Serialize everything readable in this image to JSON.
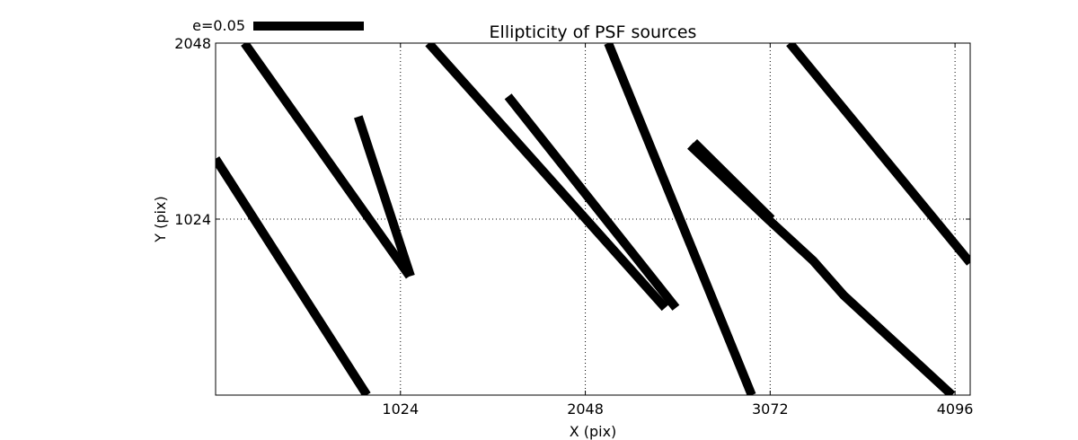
{
  "chart_data": {
    "type": "line",
    "title": "Ellipticity of PSF sources",
    "xlabel": "X (pix)",
    "ylabel": "Y (pix)",
    "xlim": [
      0,
      4180
    ],
    "ylim": [
      0,
      2048
    ],
    "xticks": [
      1024,
      2048,
      3072,
      4096
    ],
    "yticks": [
      1024,
      2048
    ],
    "xtick_labels": [
      "1024",
      "2048",
      "3072",
      "4096"
    ],
    "ytick_labels": [
      "1024",
      "2048"
    ],
    "grid": true,
    "grid_style": "dotted",
    "scale_bar": {
      "label": "e=0.05",
      "length_x": 610
    },
    "series": [
      {
        "x": [
          0,
          838
        ],
        "y": [
          1375,
          0
        ]
      },
      {
        "x": [
          160,
          1075
        ],
        "y": [
          2048,
          692
        ]
      },
      {
        "x": [
          790,
          1080
        ],
        "y": [
          1620,
          692
        ]
      },
      {
        "x": [
          1180,
          2490
        ],
        "y": [
          2048,
          508
        ]
      },
      {
        "x": [
          1620,
          2550
        ],
        "y": [
          1738,
          508
        ]
      },
      {
        "x": [
          2175,
          2970
        ],
        "y": [
          2048,
          0
        ]
      },
      {
        "x": [
          2650,
          3080
        ],
        "y": [
          1470,
          1024
        ]
      },
      {
        "x": [
          2630,
          3060,
          3310,
          3480,
          4080
        ],
        "y": [
          1452,
          1024,
          782,
          580,
          0
        ]
      },
      {
        "x": [
          3180,
          4180
        ],
        "y": [
          2048,
          770
        ]
      }
    ]
  }
}
